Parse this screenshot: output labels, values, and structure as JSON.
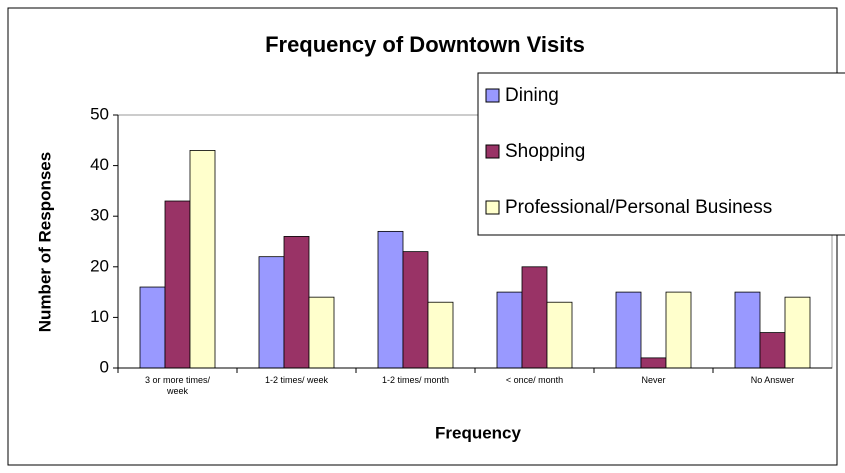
{
  "chart_data": {
    "type": "bar",
    "title": "Frequency of Downtown Visits",
    "x_label": "Frequency",
    "y_label": "Number of Responses",
    "categories": [
      "3 or more times/ week",
      "1-2 times/ week",
      "1-2 times/ month",
      "< once/ month",
      "Never",
      "No Answer"
    ],
    "series": [
      {
        "name": "Dining",
        "color": "#9999ff",
        "values": [
          16,
          22,
          27,
          15,
          15,
          15
        ]
      },
      {
        "name": "Shopping",
        "color": "#993366",
        "values": [
          33,
          26,
          23,
          20,
          2,
          7
        ]
      },
      {
        "name": "Professional/Personal Business",
        "color": "#ffffcc",
        "values": [
          43,
          14,
          13,
          13,
          15,
          14
        ]
      }
    ],
    "ylim": [
      0,
      50
    ],
    "yticks": [
      0,
      10,
      20,
      30,
      40,
      50
    ],
    "legend": "upper right"
  }
}
